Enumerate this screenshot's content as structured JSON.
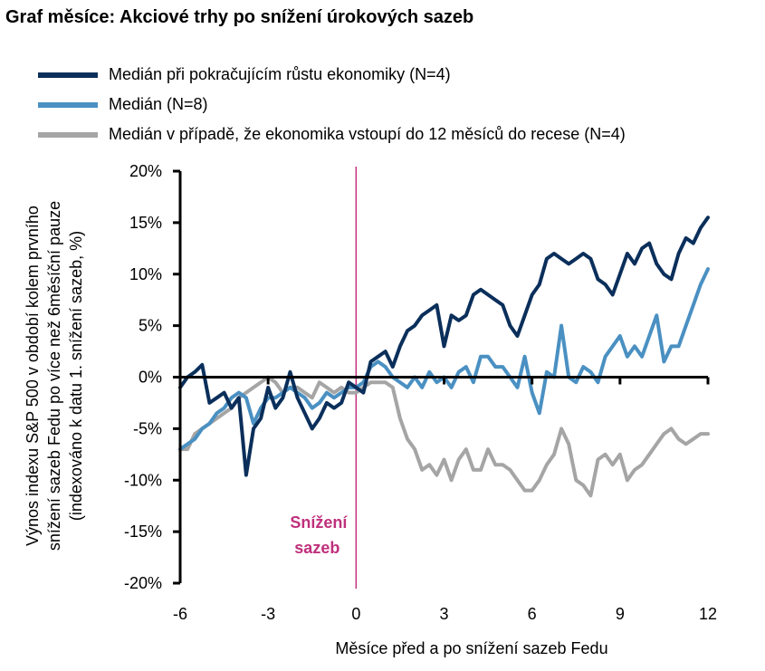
{
  "chart_data": {
    "type": "line",
    "title": "Graf měsíce: Akciové trhy po snížení úrokových sazeb",
    "xlabel": "Měsíce před a po snížení sazeb Fedu",
    "ylabel_lines": [
      "Výnos indexu S&P 500 v období kolem prvního",
      "snížení sazeb Fedu po více než 6měsíční pauze",
      "(indexováno k datu 1. snížení sazeb, %)"
    ],
    "xlim": [
      -6,
      12
    ],
    "ylim": [
      -20,
      20
    ],
    "xticks": [
      -6,
      -3,
      0,
      3,
      6,
      9,
      12
    ],
    "xtick_labels": [
      "-6",
      "-3",
      "0",
      "3",
      "6",
      "9",
      "12"
    ],
    "yticks": [
      20,
      15,
      10,
      5,
      0,
      -5,
      -10,
      -15,
      -20
    ],
    "ytick_labels": [
      "20%",
      "15%",
      "10%",
      "5%",
      "0%",
      "-5%",
      "-10%",
      "-15%",
      "-20%"
    ],
    "grid": false,
    "legend_position": "top-left",
    "annotation": {
      "x": 0,
      "lines": [
        "Snížení",
        "sazeb"
      ],
      "color": "#c0307c"
    },
    "x": [
      -6,
      -5.75,
      -5.5,
      -5.25,
      -5,
      -4.75,
      -4.5,
      -4.25,
      -4,
      -3.75,
      -3.5,
      -3.25,
      -3,
      -2.75,
      -2.5,
      -2.25,
      -2,
      -1.75,
      -1.5,
      -1.25,
      -1,
      -0.75,
      -0.5,
      -0.25,
      0,
      0.25,
      0.5,
      0.75,
      1,
      1.25,
      1.5,
      1.75,
      2,
      2.25,
      2.5,
      2.75,
      3,
      3.25,
      3.5,
      3.75,
      4,
      4.25,
      4.5,
      4.75,
      5,
      5.25,
      5.5,
      5.75,
      6,
      6.25,
      6.5,
      6.75,
      7,
      7.25,
      7.5,
      7.75,
      8,
      8.25,
      8.5,
      8.75,
      9,
      9.25,
      9.5,
      9.75,
      10,
      10.25,
      10.5,
      10.75,
      11,
      11.25,
      11.5,
      11.75,
      12
    ],
    "series": [
      {
        "name": "Medián při pokračujícím růstu ekonomiky (N=4)",
        "color": "#0b2f5b",
        "values": [
          -1,
          0,
          0.5,
          1.2,
          -2.5,
          -2,
          -1.5,
          -3,
          -2,
          -9.5,
          -5,
          -4,
          -1,
          -3,
          -2,
          0.5,
          -2,
          -3.5,
          -5,
          -4,
          -2.5,
          -3,
          -2.5,
          -0.5,
          -1,
          -1.5,
          1.5,
          2,
          2.5,
          1,
          3,
          4.5,
          5,
          6,
          6.5,
          7,
          3,
          6,
          5.5,
          6,
          8,
          8.5,
          8,
          7.5,
          7,
          5,
          4,
          6,
          8,
          9,
          11.5,
          12,
          11.5,
          11,
          11.5,
          12,
          11.5,
          9.5,
          9,
          8,
          10,
          12,
          11,
          12.5,
          13,
          11,
          10,
          9.5,
          12,
          13.5,
          13,
          14.5,
          15.5
        ]
      },
      {
        "name": "Medián (N=8)",
        "color": "#4a90c2",
        "values": [
          -7,
          -6.5,
          -6,
          -5,
          -4.5,
          -3.5,
          -3,
          -2,
          -1.5,
          -2,
          -4.5,
          -3,
          -2,
          -2,
          -1.5,
          -1,
          -1.5,
          -2,
          -3,
          -2.5,
          -1.5,
          -2,
          -1.5,
          -1,
          -1,
          -0.5,
          1,
          1.5,
          1,
          0,
          -0.5,
          -1,
          0,
          -1,
          0.5,
          -0.5,
          0,
          -1,
          0.5,
          1,
          -0.5,
          2,
          2,
          1,
          1,
          0,
          -1,
          2,
          -1.5,
          -3.5,
          0.5,
          0,
          5,
          0,
          -0.5,
          1,
          0.5,
          -0.5,
          2,
          3,
          4,
          2,
          3,
          2,
          4,
          6,
          1.5,
          3,
          3,
          5,
          7,
          9,
          10.5
        ]
      },
      {
        "name": "Medián v případě, že ekonomika vstoupí do 12 měsíců do recese (N=4)",
        "color": "#a5a5a5",
        "values": [
          -7,
          -7,
          -5.5,
          -5,
          -4.5,
          -4,
          -3.5,
          -3,
          -2,
          -1.5,
          -1,
          -0.5,
          0,
          -0.5,
          -1.5,
          -1,
          -1,
          -1.5,
          -2,
          -0.5,
          -1,
          -1.5,
          -1,
          -1.5,
          -1.5,
          -1,
          -0.5,
          -0.5,
          -0.5,
          -1,
          -4,
          -6,
          -7,
          -9,
          -8.5,
          -9.5,
          -8,
          -10,
          -8,
          -7,
          -9,
          -9,
          -7,
          -8.5,
          -8.5,
          -9,
          -10,
          -11,
          -11,
          -10,
          -8.5,
          -7.5,
          -5,
          -6.5,
          -10,
          -10.5,
          -11.5,
          -8,
          -7.5,
          -8.5,
          -7.5,
          -10,
          -9,
          -8.5,
          -7.5,
          -6.5,
          -5.5,
          -5,
          -6,
          -6.5,
          -6,
          -5.5,
          -5.5
        ]
      }
    ]
  }
}
